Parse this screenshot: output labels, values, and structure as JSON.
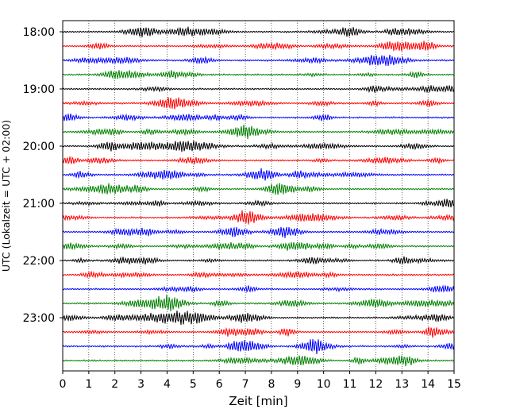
{
  "chart_data": {
    "type": "line",
    "title": "",
    "xlabel": "Zeit  [min]",
    "ylabel": "UTC (Lokalzeit = UTC + 02:00)",
    "xlim": [
      0,
      15
    ],
    "x_ticks": [
      "0",
      "1",
      "2",
      "3",
      "4",
      "5",
      "6",
      "7",
      "8",
      "9",
      "10",
      "11",
      "12",
      "13",
      "14",
      "15"
    ],
    "y_ticks": [
      "18:00",
      "19:00",
      "20:00",
      "21:00",
      "22:00",
      "23:00"
    ],
    "grid": "vertical dotted at each minute",
    "legend": "none",
    "row_interval_minutes": 15,
    "start_time": "18:00",
    "color_cycle": [
      "#000000",
      "#ff0000",
      "#0000ff",
      "#008000"
    ],
    "rows": [
      {
        "start": "18:00",
        "color": "#000000"
      },
      {
        "start": "18:15",
        "color": "#ff0000"
      },
      {
        "start": "18:30",
        "color": "#0000ff"
      },
      {
        "start": "18:45",
        "color": "#008000"
      },
      {
        "start": "19:00",
        "color": "#000000"
      },
      {
        "start": "19:15",
        "color": "#ff0000"
      },
      {
        "start": "19:30",
        "color": "#0000ff"
      },
      {
        "start": "19:45",
        "color": "#008000"
      },
      {
        "start": "20:00",
        "color": "#000000"
      },
      {
        "start": "20:15",
        "color": "#ff0000"
      },
      {
        "start": "20:30",
        "color": "#0000ff"
      },
      {
        "start": "20:45",
        "color": "#008000"
      },
      {
        "start": "21:00",
        "color": "#000000"
      },
      {
        "start": "21:15",
        "color": "#ff0000"
      },
      {
        "start": "21:30",
        "color": "#0000ff"
      },
      {
        "start": "21:45",
        "color": "#008000"
      },
      {
        "start": "22:00",
        "color": "#000000"
      },
      {
        "start": "22:15",
        "color": "#ff0000"
      },
      {
        "start": "22:30",
        "color": "#0000ff"
      },
      {
        "start": "22:45",
        "color": "#008000"
      },
      {
        "start": "23:00",
        "color": "#000000"
      },
      {
        "start": "23:15",
        "color": "#ff0000"
      },
      {
        "start": "23:30",
        "color": "#0000ff"
      },
      {
        "start": "23:45",
        "color": "#008000"
      }
    ]
  }
}
